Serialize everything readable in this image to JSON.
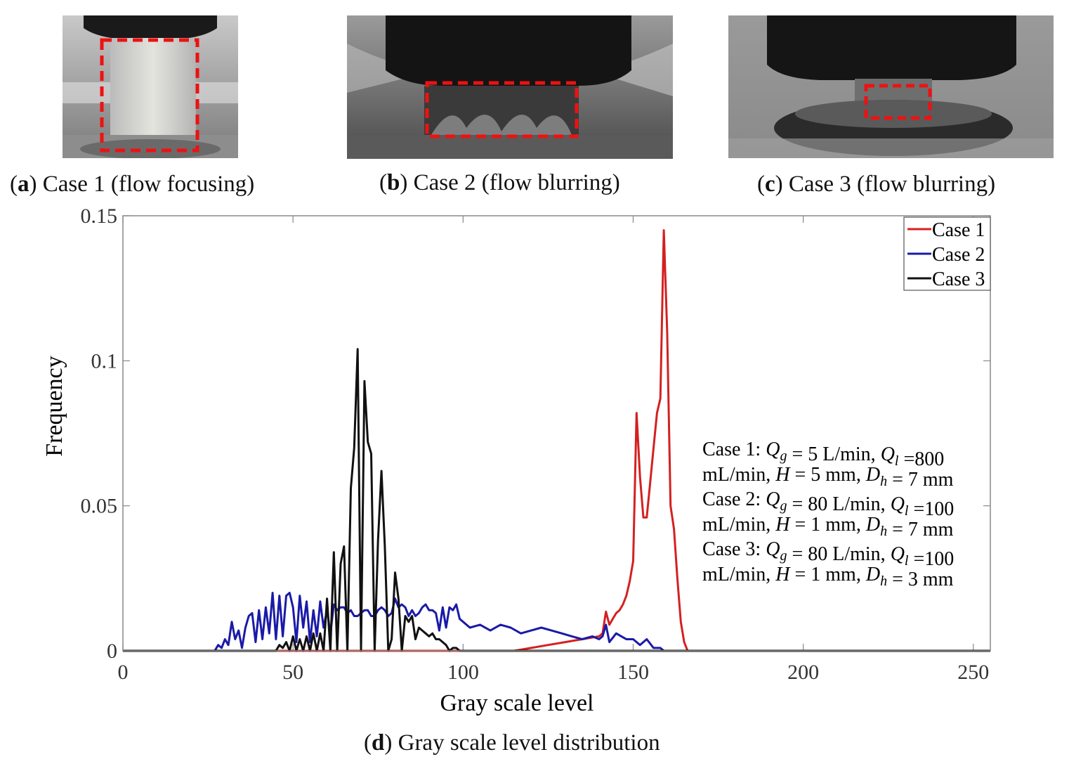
{
  "panels": [
    {
      "letter": "a",
      "caption": "Case 1 (flow focusing)"
    },
    {
      "letter": "b",
      "caption": "Case 2 (flow blurring)"
    },
    {
      "letter": "c",
      "caption": "Case 3 (flow blurring)"
    },
    {
      "letter": "d",
      "caption": "Gray scale level distribution"
    }
  ],
  "colors": {
    "case1": "#d42020",
    "case2": "#1a1aa8",
    "case3": "#111111",
    "highlight": "#ee1111"
  },
  "chart_data": {
    "type": "line",
    "xlabel": "Gray scale level",
    "ylabel": "Frequency",
    "xlim": [
      0,
      255
    ],
    "ylim": [
      0,
      0.15
    ],
    "xticks": [
      0,
      50,
      100,
      150,
      200,
      250
    ],
    "xtick_labels": [
      "0",
      "50",
      "100",
      "150",
      "200",
      "250"
    ],
    "yticks": [
      0,
      0.05,
      0.1,
      0.15
    ],
    "ytick_labels": [
      "0",
      "0.05",
      "0.1",
      "0.15"
    ],
    "legend": [
      "Case 1",
      "Case 2",
      "Case 3"
    ],
    "legend_position": "top-right",
    "annotation": {
      "case1_line1": "Case 1: Q_g = 5 L/min, Q_l =800",
      "case1_line2": "mL/min, H = 5 mm, D_h = 7 mm",
      "case2_line1": "Case 2: Q_g = 80 L/min, Q_l =100",
      "case2_line2": "mL/min, H = 1 mm, D_h = 7 mm",
      "case3_line1": "Case 3: Q_g = 80 L/min, Q_l =100",
      "case3_line2": "mL/min, H = 1 mm, D_h = 3 mm"
    },
    "series": [
      {
        "name": "Case 1",
        "color": "#d42020",
        "x": [
          0,
          115,
          120,
          125,
          130,
          135,
          140,
          141,
          142,
          143,
          144,
          145,
          146,
          147,
          148,
          149,
          150,
          151,
          152,
          153,
          154,
          155,
          156,
          157,
          158,
          159,
          160,
          161,
          162,
          163,
          164,
          165,
          166,
          255
        ],
        "y": [
          0,
          0,
          0.001,
          0.002,
          0.003,
          0.004,
          0.005,
          0.006,
          0.0135,
          0.009,
          0.011,
          0.013,
          0.014,
          0.016,
          0.019,
          0.024,
          0.031,
          0.082,
          0.06,
          0.046,
          0.046,
          0.058,
          0.07,
          0.082,
          0.087,
          0.145,
          0.11,
          0.05,
          0.042,
          0.025,
          0.01,
          0.003,
          0,
          0
        ]
      },
      {
        "name": "Case 2",
        "color": "#1a1aa8",
        "x": [
          0,
          27,
          28,
          29,
          30,
          31,
          32,
          33,
          34,
          35,
          36,
          37,
          38,
          39,
          40,
          41,
          42,
          43,
          44,
          45,
          46,
          47,
          48,
          49,
          50,
          51,
          52,
          53,
          54,
          55,
          56,
          57,
          58,
          59,
          60,
          61,
          62,
          63,
          64,
          65,
          66,
          67,
          68,
          69,
          70,
          71,
          72,
          73,
          74,
          75,
          76,
          77,
          78,
          79,
          80,
          81,
          82,
          83,
          84,
          85,
          86,
          87,
          88,
          89,
          90,
          91,
          92,
          93,
          94,
          95,
          96,
          97,
          98,
          99,
          100,
          102,
          105,
          108,
          111,
          114,
          117,
          120,
          123,
          126,
          129,
          132,
          135,
          138,
          140,
          141,
          142,
          143,
          145,
          148,
          150,
          152,
          154,
          156,
          158,
          159,
          255
        ],
        "y": [
          0,
          0,
          0.002,
          0.001,
          0.004,
          0.002,
          0.01,
          0.004,
          0.007,
          0.001,
          0.008,
          0.012,
          0.013,
          0.003,
          0.014,
          0.004,
          0.015,
          0.006,
          0.02,
          0.004,
          0.019,
          0.005,
          0.019,
          0.02,
          0.015,
          0.003,
          0.019,
          0.008,
          0.017,
          0.003,
          0.014,
          0.005,
          0.017,
          0.008,
          0.014,
          0.006,
          0.016,
          0.014,
          0.015,
          0.015,
          0.013,
          0.014,
          0.012,
          0.012,
          0.013,
          0.014,
          0.014,
          0.012,
          0.012,
          0.014,
          0.015,
          0.014,
          0.012,
          0.013,
          0.018,
          0.015,
          0.016,
          0.015,
          0.012,
          0.014,
          0.012,
          0.013,
          0.015,
          0.016,
          0.014,
          0.014,
          0.013,
          0.007,
          0.015,
          0.008,
          0.015,
          0.014,
          0.016,
          0.011,
          0.01,
          0.008,
          0.009,
          0.007,
          0.009,
          0.008,
          0.006,
          0.007,
          0.008,
          0.007,
          0.006,
          0.005,
          0.004,
          0.005,
          0.004,
          0.005,
          0.009,
          0.003,
          0.006,
          0.004,
          0.004,
          0.002,
          0.004,
          0.001,
          0.001,
          0,
          0
        ]
      },
      {
        "name": "Case 3",
        "color": "#111111",
        "x": [
          0,
          45,
          46,
          47,
          48,
          49,
          50,
          51,
          52,
          53,
          54,
          55,
          56,
          57,
          58,
          59,
          60,
          61,
          62,
          63,
          64,
          65,
          66,
          67,
          68,
          69,
          70,
          71,
          72,
          73,
          74,
          75,
          76,
          77,
          78,
          79,
          80,
          81,
          82,
          83,
          84,
          85,
          86,
          87,
          88,
          89,
          90,
          91,
          92,
          93,
          94,
          95,
          96,
          97,
          98,
          99,
          100,
          255
        ],
        "y": [
          0,
          0,
          0.002,
          0.001,
          0.003,
          0.0,
          0.005,
          0.0,
          0.004,
          0.0,
          0.005,
          0.0,
          0.006,
          0.0,
          0.006,
          0.0,
          0.018,
          0.0,
          0.034,
          0.0,
          0.03,
          0.036,
          0.0,
          0.056,
          0.07,
          0.104,
          0.0,
          0.093,
          0.072,
          0.068,
          0.0,
          0.038,
          0.062,
          0.036,
          0.0,
          0.004,
          0.027,
          0.018,
          0.0,
          0.012,
          0.01,
          0.012,
          0.004,
          0.008,
          0.007,
          0.006,
          0.005,
          0.006,
          0.004,
          0.004,
          0.003,
          0.002,
          0.0,
          0.001,
          0.001,
          0.0,
          0.0,
          0
        ]
      }
    ]
  }
}
